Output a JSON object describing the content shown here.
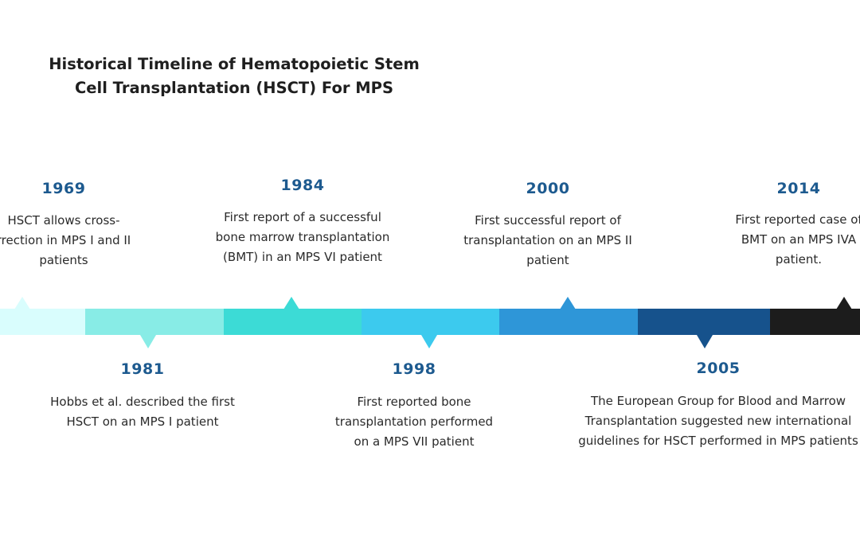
{
  "title": {
    "line1": "Historical Timeline of Hematopoietic Stem",
    "line2": "Cell Transplantation (HSCT) For MPS"
  },
  "colors": {
    "seg1": "#d9fdfd",
    "seg2": "#88ece6",
    "seg3": "#3cdbd6",
    "seg4": "#3ccaee",
    "seg5": "#2e96d8",
    "seg6": "#16528c",
    "seg7": "#1c1c1c",
    "year_text": "#1d5a8f"
  },
  "events_above": [
    {
      "year": "1969",
      "lines": [
        "HSCT allows cross-",
        "rrection in MPS I and II",
        "patients"
      ]
    },
    {
      "year": "1984",
      "lines": [
        "First report of a successful",
        "bone marrow transplantation",
        "(BMT) in an MPS VI patient"
      ]
    },
    {
      "year": "2000",
      "lines": [
        "First successful report of",
        "transplantation on an MPS II",
        "patient"
      ]
    },
    {
      "year": "2014",
      "lines": [
        "First reported case of",
        "BMT on an MPS IVA",
        "patient."
      ]
    }
  ],
  "events_below": [
    {
      "year": "1981",
      "lines": [
        "Hobbs et al. described the first",
        "HSCT on an MPS I patient"
      ]
    },
    {
      "year": "1998",
      "lines": [
        "First reported bone",
        "transplantation performed",
        "on a MPS VII patient"
      ]
    },
    {
      "year": "2005",
      "lines": [
        "The European Group for Blood and Marrow",
        "Transplantation suggested new international",
        "guidelines for HSCT performed in MPS patients"
      ]
    }
  ]
}
